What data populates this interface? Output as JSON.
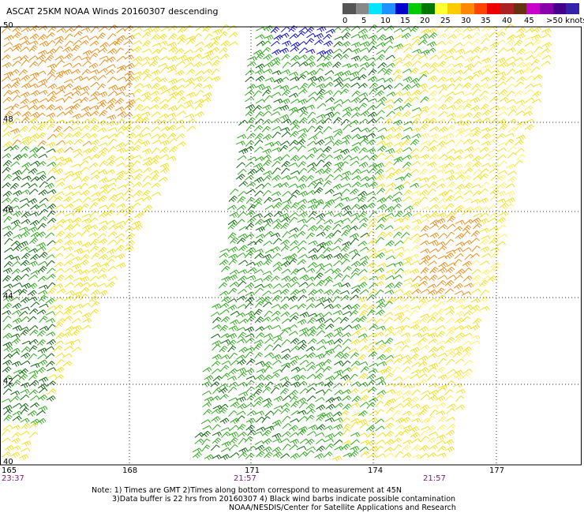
{
  "title": "ASCAT 25KM NOAA Winds 20160307 descending",
  "legend": {
    "labels": [
      "0",
      "5",
      "10",
      "15",
      "20",
      "25",
      "30",
      "35",
      "40",
      "45",
      ">50 knots"
    ],
    "colors": [
      "#555555",
      "#888888",
      "#00e5ff",
      "#1e90ff",
      "#0000cc",
      "#00cc00",
      "#007700",
      "#ffff33",
      "#ffcc00",
      "#ff8800",
      "#ff4400",
      "#ee0000",
      "#aa2222",
      "#663311",
      "#cc00cc",
      "#8800aa",
      "#440088",
      "#3322aa"
    ]
  },
  "map": {
    "lat_labels": [
      "50",
      "48",
      "46",
      "44",
      "42",
      "40"
    ],
    "lon_labels": [
      "165",
      "168",
      "171",
      "174",
      "177"
    ],
    "pass_times": [
      "23:37",
      "21:57",
      "21:57"
    ],
    "barb_colors": {
      "yellow": "#f0e020",
      "light_yellow": "#ffee66",
      "orange": "#e89020",
      "green": "#33aa22",
      "dark_green": "#116611",
      "blue": "#1010cc",
      "black": "#000000"
    }
  },
  "notes": {
    "line1": "Note: 1) Times are GMT 2)Times along bottom correspond to measurement at 45N",
    "line2": "3)Data buffer is 22 hrs from 20160307 4) Black wind barbs indicate possible contamination",
    "line3": "NOAA/NESDIS/Center for Satellite Applications and Research"
  }
}
